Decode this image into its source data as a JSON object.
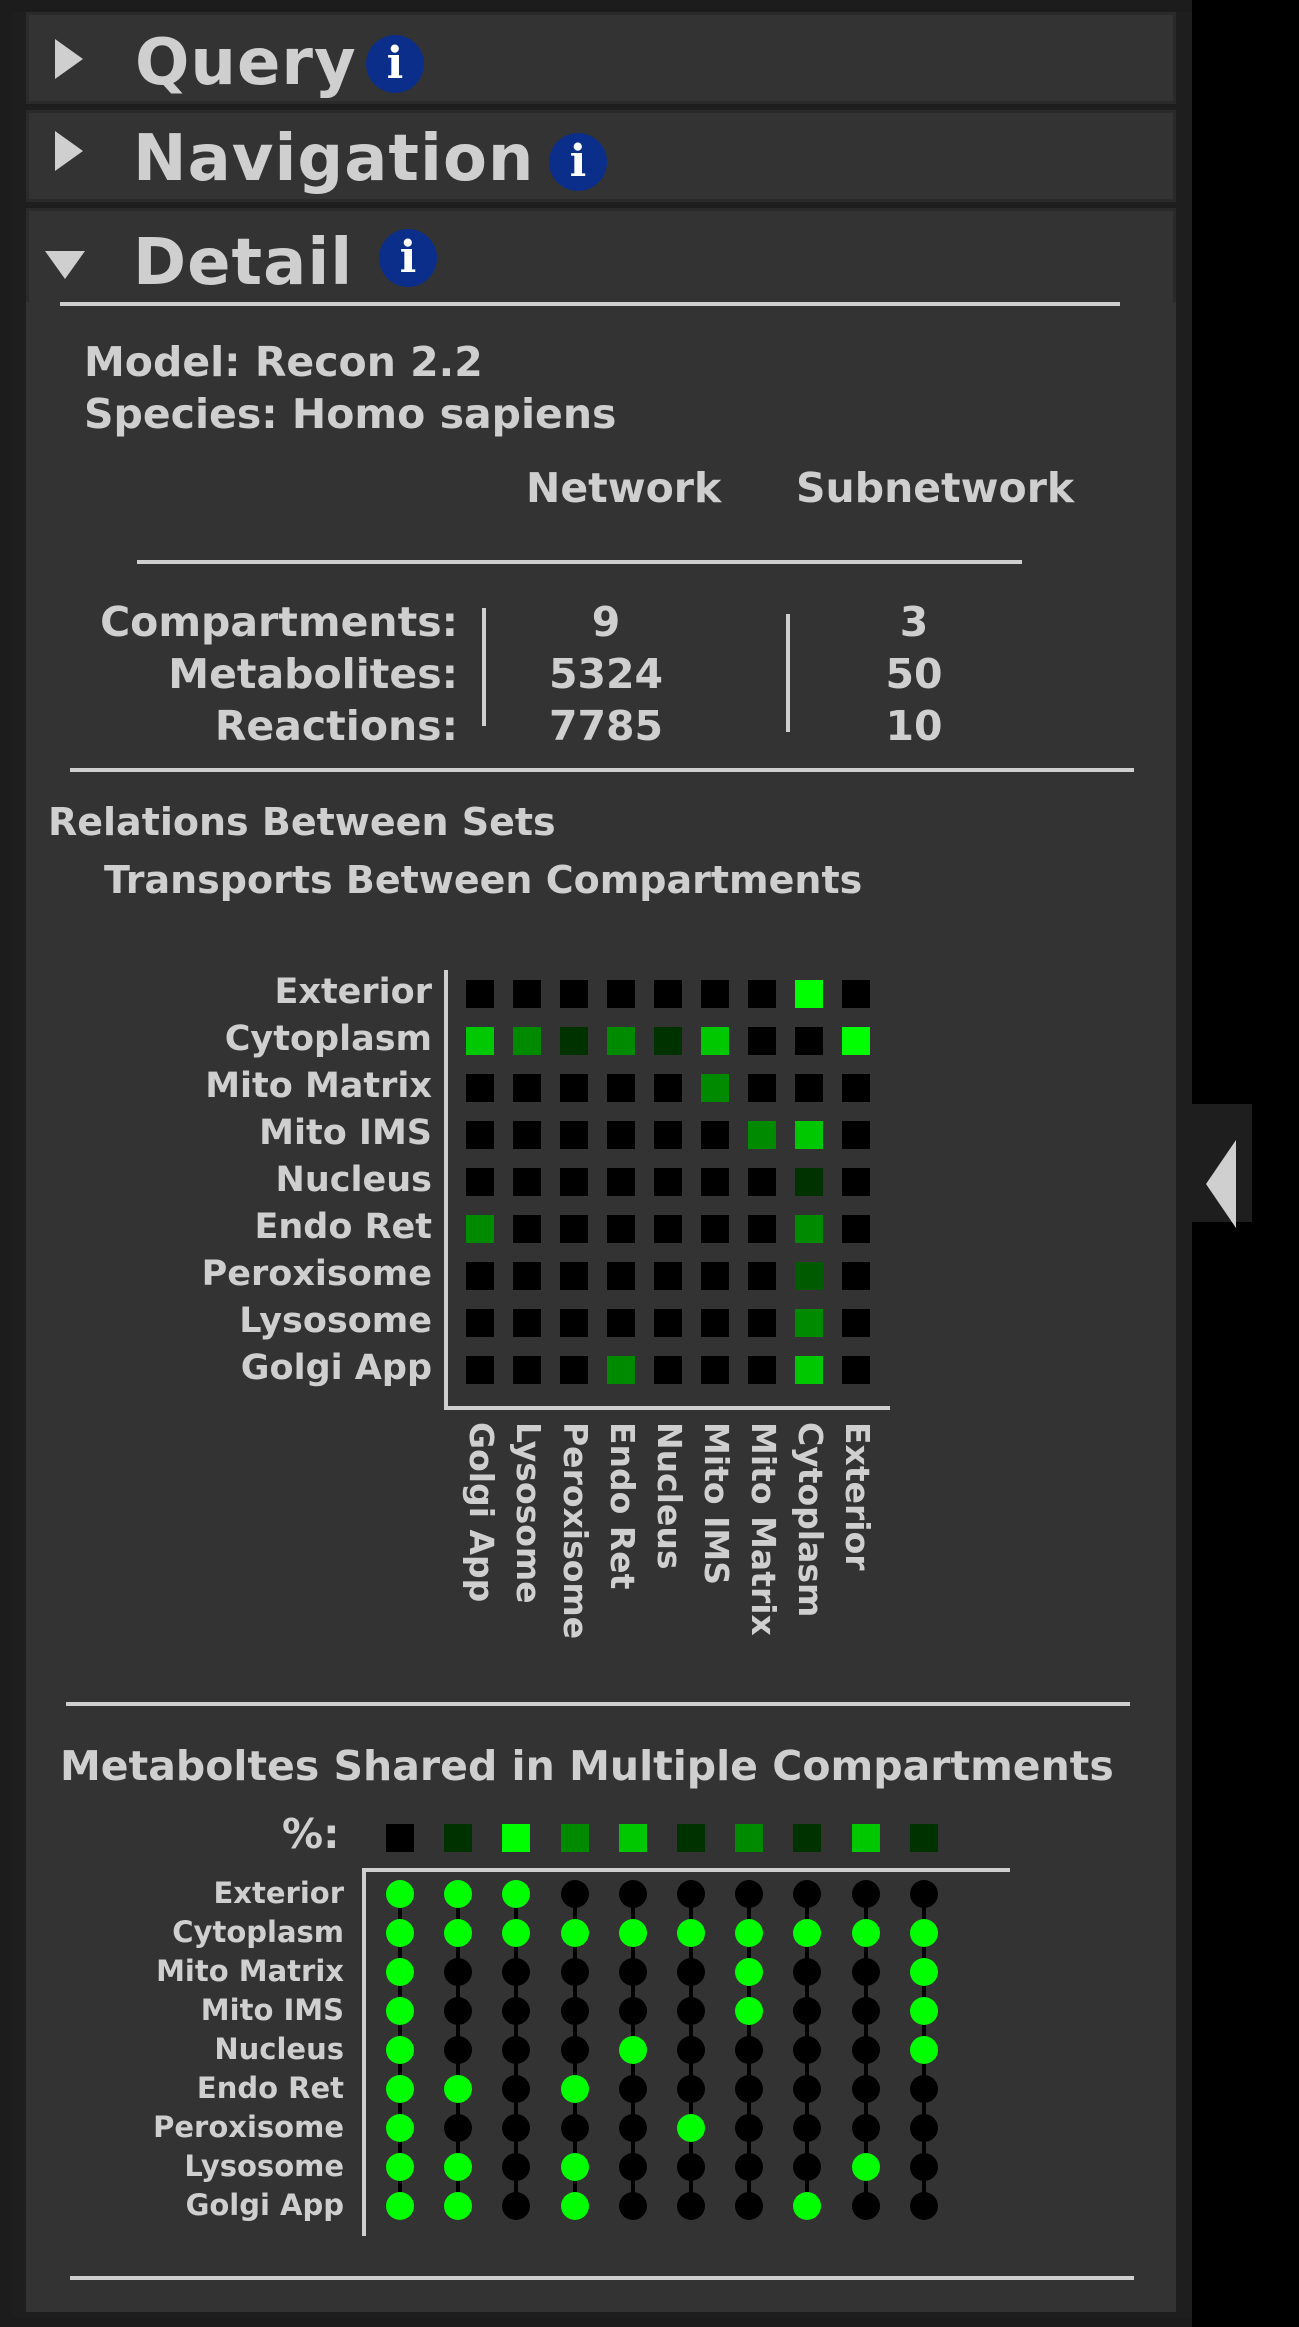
{
  "sections": {
    "query": {
      "title": "Query",
      "info": "i"
    },
    "navigation": {
      "title": "Navigation",
      "info": "i"
    },
    "detail": {
      "title": "Detail",
      "info": "i"
    }
  },
  "detail": {
    "model_line": "Model: Recon 2.2",
    "species_line": "Species: Homo sapiens",
    "col_network": "Network",
    "col_subnetwork": "Subnetwork",
    "stats": [
      {
        "label": "Compartments:",
        "network": "9",
        "subnetwork": "3"
      },
      {
        "label": "Metabolites:",
        "network": "5324",
        "subnetwork": "50"
      },
      {
        "label": "Reactions:",
        "network": "7785",
        "subnetwork": "10"
      }
    ],
    "relations_title": "Relations Between Sets",
    "transports_title": "Transports Between Compartments",
    "shared_title": "Metaboltes Shared in Multiple Compartments",
    "pct_label": "%:"
  },
  "colors": {
    "bg": "#333333",
    "off": "#000000",
    "green_bright": "#00ff00",
    "green_mid": "#00c800",
    "green_dark": "#008a00",
    "green_darker": "#005a00",
    "green_deep": "#003200",
    "info_blue": "#0b2e8a"
  },
  "transport_matrix": {
    "rows": [
      "Exterior",
      "Cytoplasm",
      "Mito Matrix",
      "Mito IMS",
      "Nucleus",
      "Endo Ret",
      "Peroxisome",
      "Lysosome",
      "Golgi App"
    ],
    "cols": [
      "Golgi App",
      "Lysosome",
      "Peroxisome",
      "Endo Ret",
      "Nucleus",
      "Mito IMS",
      "Mito Matrix",
      "Cytoplasm",
      "Exterior"
    ],
    "levels": [
      [
        0,
        0,
        0,
        0,
        0,
        0,
        0,
        5,
        0
      ],
      [
        4,
        3,
        1,
        3,
        1,
        4,
        0,
        0,
        5
      ],
      [
        0,
        0,
        0,
        0,
        0,
        3,
        0,
        0,
        0
      ],
      [
        0,
        0,
        0,
        0,
        0,
        0,
        3,
        4,
        0
      ],
      [
        0,
        0,
        0,
        0,
        0,
        0,
        0,
        1,
        0
      ],
      [
        3,
        0,
        0,
        0,
        0,
        0,
        0,
        3,
        0
      ],
      [
        0,
        0,
        0,
        0,
        0,
        0,
        0,
        2,
        0
      ],
      [
        0,
        0,
        0,
        0,
        0,
        0,
        0,
        3,
        0
      ],
      [
        0,
        0,
        0,
        3,
        0,
        0,
        0,
        4,
        0
      ]
    ]
  },
  "shared_matrix": {
    "rows": [
      "Exterior",
      "Cytoplasm",
      "Mito Matrix",
      "Mito IMS",
      "Nucleus",
      "Endo Ret",
      "Peroxisome",
      "Lysosome",
      "Golgi App"
    ],
    "pct_levels": [
      0,
      1,
      5,
      3,
      4,
      1,
      3,
      1,
      4,
      1
    ],
    "dots": [
      [
        1,
        1,
        1,
        0,
        0,
        0,
        0,
        0,
        0,
        0
      ],
      [
        1,
        1,
        1,
        1,
        1,
        1,
        1,
        1,
        1,
        1
      ],
      [
        1,
        0,
        0,
        0,
        0,
        0,
        1,
        0,
        0,
        1
      ],
      [
        1,
        0,
        0,
        0,
        0,
        0,
        1,
        0,
        0,
        1
      ],
      [
        1,
        0,
        0,
        0,
        1,
        0,
        0,
        0,
        0,
        1
      ],
      [
        1,
        1,
        0,
        1,
        0,
        0,
        0,
        0,
        0,
        0
      ],
      [
        1,
        0,
        0,
        0,
        0,
        1,
        0,
        0,
        0,
        0
      ],
      [
        1,
        1,
        0,
        1,
        0,
        0,
        0,
        0,
        1,
        0
      ],
      [
        1,
        1,
        0,
        1,
        0,
        0,
        0,
        1,
        0,
        0
      ]
    ]
  },
  "collapse_tab": {
    "icon": "chevron-left-icon"
  }
}
